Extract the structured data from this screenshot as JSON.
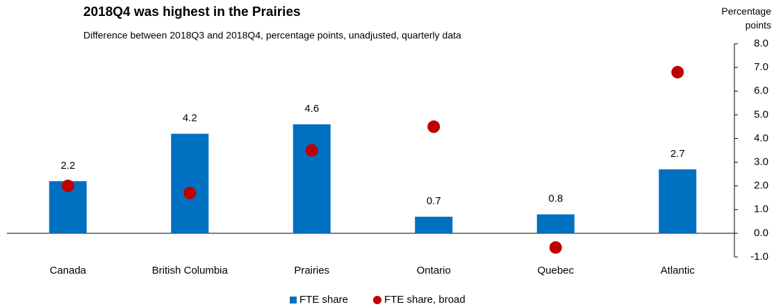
{
  "chart_data": {
    "type": "bar_dot",
    "title": "2018Q4 was highest in the Prairies",
    "subtitle": "Difference between 2018Q3 and 2018Q4, percentage points, unadjusted, quarterly data",
    "y_axis_label": "Percentage points",
    "categories": [
      "Canada",
      "British Columbia",
      "Prairies",
      "Ontario",
      "Quebec",
      "Atlantic"
    ],
    "series": [
      {
        "name": "FTE share",
        "color": "#0070c0",
        "values": [
          2.2,
          4.2,
          4.6,
          0.7,
          0.8,
          2.7
        ]
      },
      {
        "name": "FTE share, broad",
        "color": "#c00000",
        "values": [
          2.0,
          1.7,
          3.5,
          4.5,
          -0.6,
          6.8
        ]
      }
    ],
    "ylim": [
      -1.0,
      8.0
    ],
    "yticks": [
      {
        "value": 8,
        "label": "8.0"
      },
      {
        "value": 7,
        "label": "7.0"
      },
      {
        "value": 6,
        "label": "6.0"
      },
      {
        "value": 5,
        "label": "5.0"
      },
      {
        "value": 4,
        "label": "4.0"
      },
      {
        "value": 3,
        "label": "3.0"
      },
      {
        "value": 2,
        "label": "2.0"
      },
      {
        "value": 1,
        "label": "1.0"
      },
      {
        "value": 0,
        "label": "0.0"
      },
      {
        "value": -1,
        "label": "-1.0"
      }
    ],
    "grid": false
  }
}
